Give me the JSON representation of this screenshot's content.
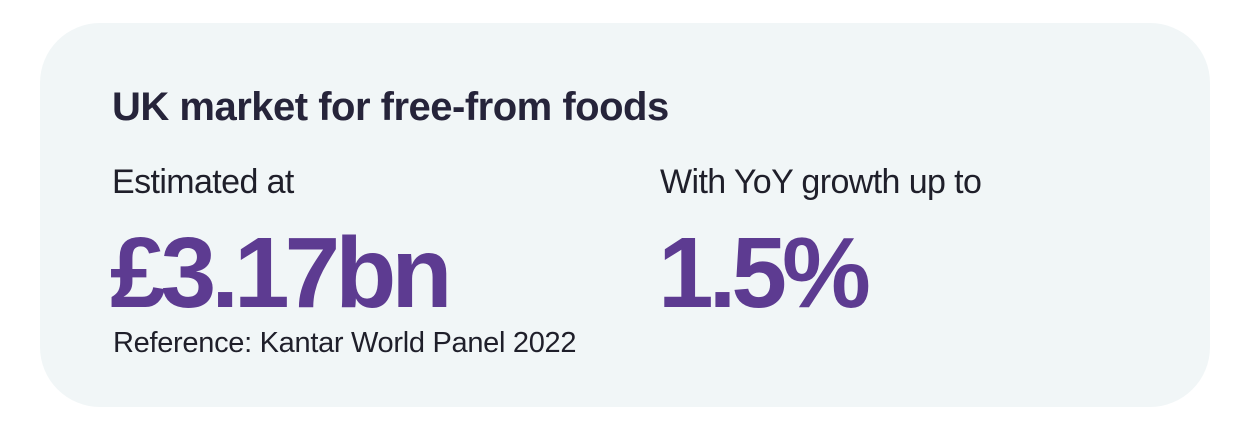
{
  "card": {
    "title": "UK market for free-from foods",
    "stats": [
      {
        "label": "Estimated at",
        "value": "£3.17bn"
      },
      {
        "label": "With YoY growth up to",
        "value": "1.5%"
      }
    ],
    "reference": "Reference: Kantar World Panel 2022"
  },
  "colors": {
    "card_background": "#f1f6f7",
    "title_text": "#26243a",
    "body_text": "#1f1f2a",
    "accent_value": "#5d3b91"
  }
}
